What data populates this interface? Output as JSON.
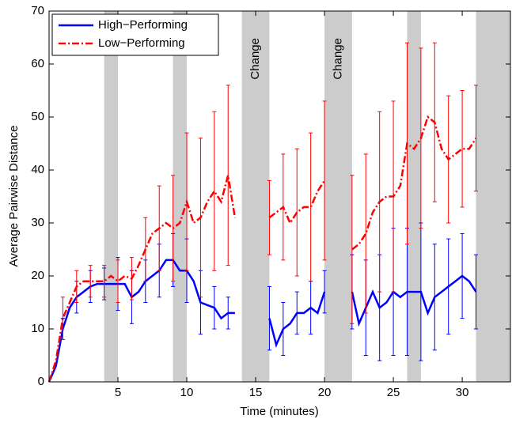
{
  "chart_data": {
    "type": "line",
    "xlabel": "Time (minutes)",
    "ylabel": "Average Pairwise Distance",
    "x": [
      0,
      0.5,
      1,
      1.5,
      2,
      2.5,
      3,
      3.5,
      4,
      4.5,
      5,
      5.5,
      6,
      6.5,
      7,
      7.5,
      8,
      8.5,
      9,
      9.5,
      10,
      10.5,
      11,
      11.5,
      12,
      12.5,
      13,
      13.5,
      14,
      14.5,
      15,
      15.5,
      16,
      16.5,
      17,
      17.5,
      18,
      18.5,
      19,
      19.5,
      20,
      20.5,
      21,
      21.5,
      22,
      22.5,
      23,
      23.5,
      24,
      24.5,
      25,
      25.5,
      26,
      26.5,
      27,
      27.5,
      28,
      28.5,
      29,
      29.5,
      30,
      30.5,
      31
    ],
    "series": [
      {
        "name": "High−Performing",
        "color": "#0000ff",
        "values": [
          0,
          3,
          10,
          14,
          16,
          17,
          18,
          18.5,
          18.5,
          18.5,
          18.5,
          18.5,
          16,
          17,
          19,
          20,
          21,
          23,
          23,
          21,
          21,
          19,
          15,
          14.5,
          14,
          12,
          13,
          13,
          null,
          null,
          null,
          null,
          12,
          7,
          10,
          11,
          13,
          13,
          14,
          13,
          17,
          null,
          null,
          null,
          17,
          11,
          14,
          17,
          14,
          15,
          17,
          16,
          17,
          17,
          17,
          13,
          16,
          17,
          18,
          19,
          20,
          19,
          17
        ],
        "errors": [
          null,
          null,
          2,
          null,
          3,
          null,
          3,
          null,
          3,
          null,
          5,
          null,
          5,
          null,
          4,
          null,
          5,
          null,
          5,
          null,
          6,
          null,
          6,
          null,
          4,
          null,
          3,
          null,
          null,
          null,
          null,
          null,
          6,
          null,
          5,
          null,
          4,
          null,
          5,
          null,
          4,
          null,
          null,
          null,
          7,
          null,
          9,
          null,
          10,
          null,
          12,
          null,
          12,
          null,
          13,
          null,
          10,
          null,
          9,
          null,
          8,
          null,
          7
        ]
      },
      {
        "name": "Low−Performing",
        "color": "#ff0000",
        "values": [
          0,
          4,
          12,
          15,
          18,
          19,
          19,
          19,
          19,
          20,
          19,
          20,
          19.5,
          22,
          25,
          28,
          29,
          30,
          29,
          30,
          34,
          30,
          31,
          34,
          36,
          34,
          39,
          31,
          null,
          null,
          null,
          null,
          31,
          32,
          33,
          30,
          32,
          33,
          33,
          36,
          38,
          null,
          null,
          null,
          25,
          26,
          28,
          32,
          34,
          35,
          35,
          37,
          45,
          44,
          46,
          50,
          49,
          44,
          42,
          43,
          44,
          44,
          46
        ],
        "errors": [
          null,
          null,
          4,
          null,
          3,
          null,
          3,
          null,
          3,
          null,
          4,
          null,
          4,
          null,
          6,
          null,
          8,
          null,
          10,
          null,
          13,
          null,
          15,
          null,
          15,
          null,
          17,
          null,
          null,
          null,
          null,
          null,
          7,
          null,
          10,
          null,
          12,
          null,
          14,
          null,
          15,
          null,
          null,
          null,
          14,
          null,
          15,
          null,
          17,
          null,
          18,
          null,
          19,
          null,
          17,
          null,
          15,
          null,
          12,
          null,
          11,
          null,
          10
        ]
      }
    ],
    "shaded_regions": [
      [
        4,
        5
      ],
      [
        9,
        10
      ],
      [
        14,
        16
      ],
      [
        20,
        22
      ],
      [
        26,
        27
      ],
      [
        31,
        33.5
      ]
    ],
    "annotations": [
      "Change",
      "Change"
    ],
    "xlim": [
      0,
      33.5
    ],
    "ylim": [
      0,
      70
    ],
    "xticks": [
      5,
      10,
      15,
      20,
      25,
      30
    ],
    "yticks": [
      0,
      10,
      20,
      30,
      40,
      50,
      60,
      70
    ],
    "legend": "upper left"
  }
}
